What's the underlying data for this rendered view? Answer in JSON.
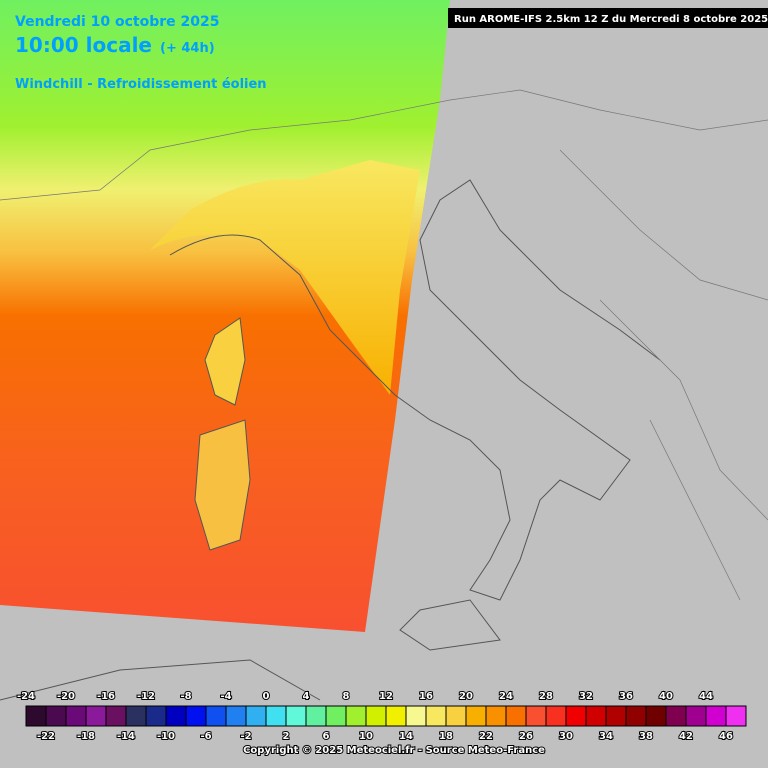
{
  "header": {
    "date": "Vendredi 10 octobre 2025",
    "time": "10:00 locale",
    "lead": "(+ 44h)",
    "variable": "Windchill - Refroidissement éolien",
    "run": "Run AROME-IFS 2.5km 12 Z du Mercredi 8 octobre 2025"
  },
  "legend": {
    "ticks": [
      -24,
      -22,
      -20,
      -18,
      -16,
      -14,
      -12,
      -10,
      -8,
      -6,
      -4,
      -2,
      0,
      2,
      4,
      6,
      8,
      10,
      12,
      14,
      16,
      18,
      20,
      22,
      24,
      26,
      28,
      30,
      32,
      34,
      36,
      38,
      40,
      42,
      44,
      46
    ],
    "colors": [
      "#2d0a2d",
      "#4b0a50",
      "#6a0a78",
      "#8a1a9a",
      "#6a1060",
      "#2a3060",
      "#1a2a8a",
      "#0000c0",
      "#0010f0",
      "#1050f0",
      "#2080f0",
      "#30b0f0",
      "#40e0f0",
      "#60f8d8",
      "#60f0a0",
      "#70f060",
      "#a0f030",
      "#d0f000",
      "#f0f000",
      "#f8f890",
      "#f8e860",
      "#f8d040",
      "#f8b000",
      "#f89000",
      "#f87000",
      "#f85030",
      "#f83020",
      "#f00000",
      "#d00000",
      "#b00000",
      "#900000",
      "#700000",
      "#800050",
      "#a00090",
      "#d000d0",
      "#f030f0"
    ]
  },
  "footer": "Copyright © 2025 Meteociel.fr - Source Meteo-France"
}
